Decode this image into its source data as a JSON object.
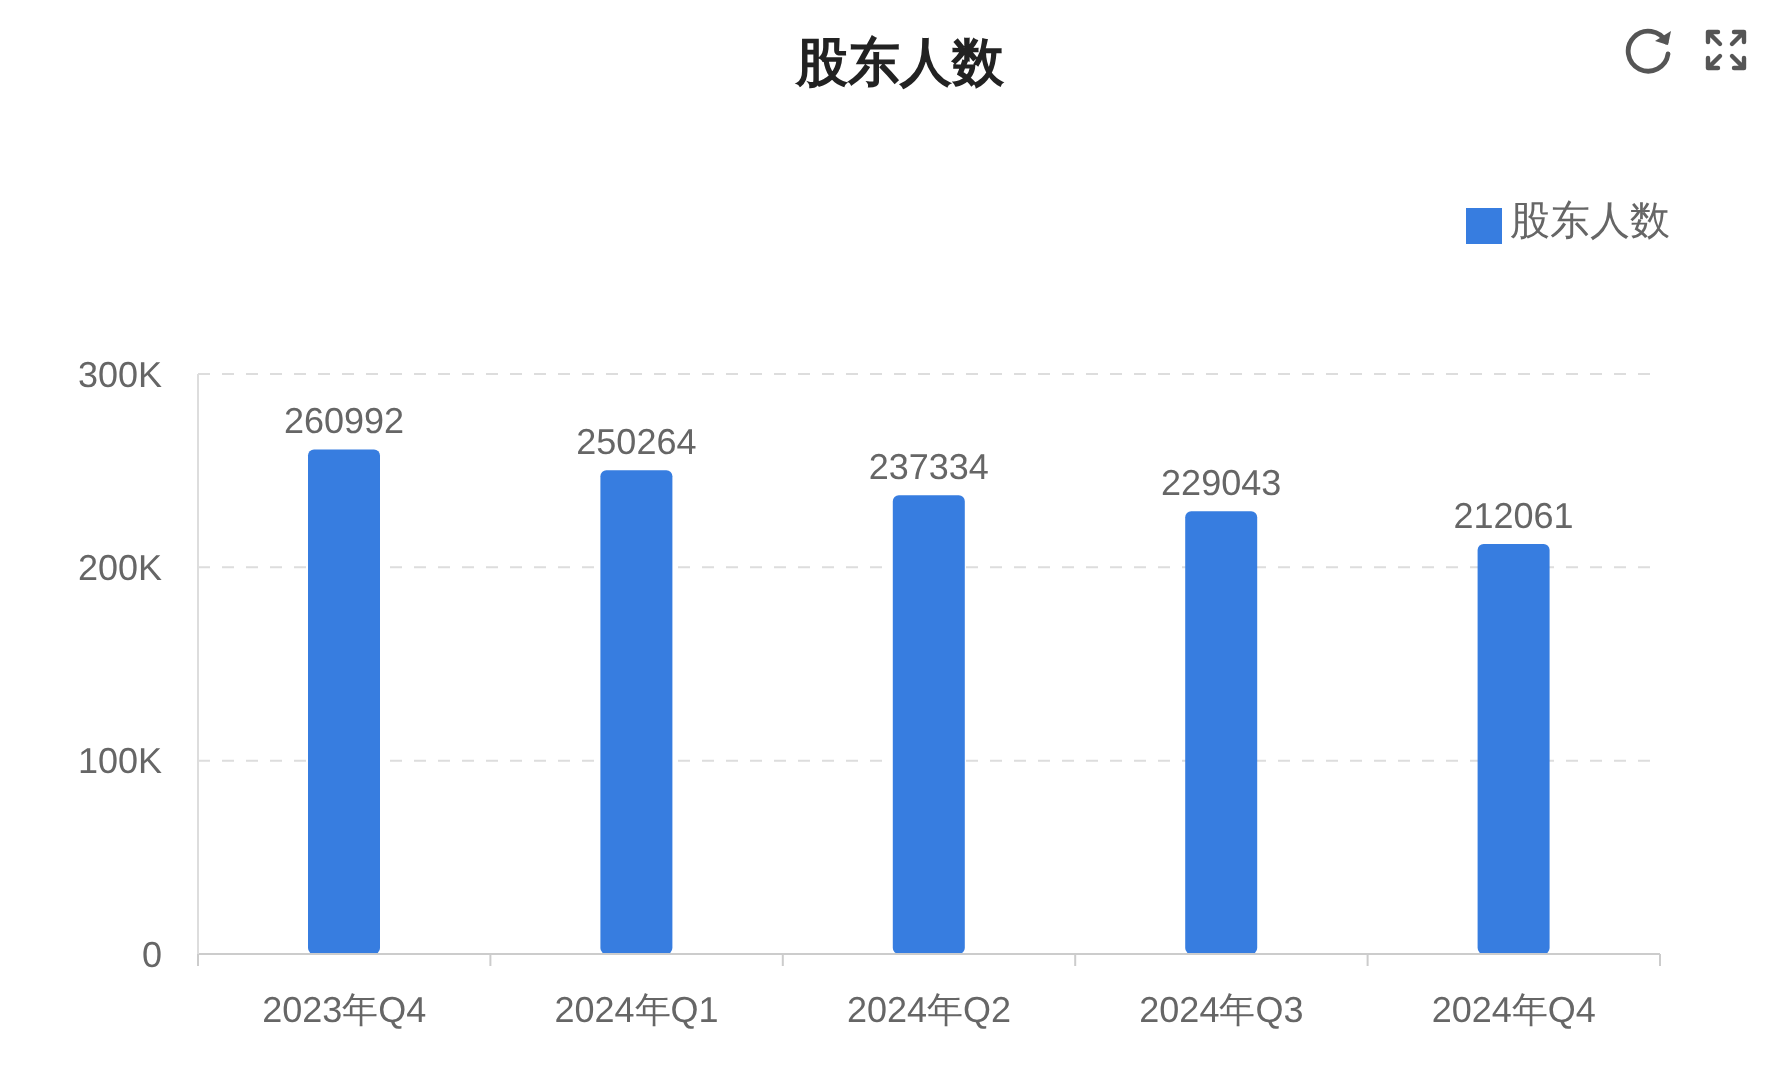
{
  "chart_data": {
    "type": "bar",
    "title": "股东人数",
    "categories": [
      "2023年Q4",
      "2024年Q1",
      "2024年Q2",
      "2024年Q3",
      "2024年Q4"
    ],
    "series": [
      {
        "name": "股东人数",
        "color": "#377de0",
        "values": [
          260992,
          250264,
          237334,
          229043,
          212061
        ]
      }
    ],
    "ylim": [
      0,
      300000
    ],
    "yticks": [
      0,
      {
        "value": 100000,
        "label": "100K"
      },
      {
        "value": 200000,
        "label": "200K"
      },
      {
        "value": 300000,
        "label": "300K"
      }
    ],
    "grid": "y",
    "legend": "top right",
    "data_labels": true
  }
}
